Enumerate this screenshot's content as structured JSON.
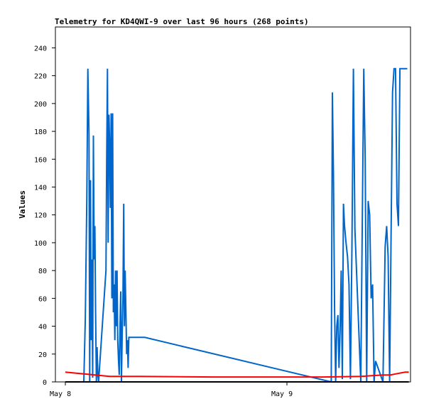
{
  "chart_data": {
    "type": "line",
    "title": "Telemetry for KD4QWI-9 over last 96 hours (268 points)",
    "xlabel": "",
    "ylabel": "Values",
    "x_tick_labels": [
      "May 8",
      "May 9"
    ],
    "x_range_hours": [
      0,
      96
    ],
    "x_ticks_hours": [
      0,
      60
    ],
    "ylim": [
      0,
      255
    ],
    "y_ticks": [
      0,
      20,
      40,
      60,
      80,
      100,
      120,
      140,
      160,
      180,
      200,
      220,
      240
    ],
    "grid": false,
    "series": [
      {
        "color": "#0066cc",
        "x": [
          5.0,
          5.4,
          5.8,
          6.1,
          6.4,
          6.6,
          6.8,
          7.0,
          7.2,
          7.4,
          7.6,
          7.8,
          8.0,
          8.2,
          8.4,
          8.6,
          8.8,
          9.0,
          11.0,
          11.2,
          11.4,
          11.6,
          11.8,
          12.0,
          12.2,
          12.4,
          12.6,
          12.8,
          13.0,
          13.2,
          13.4,
          13.6,
          13.8,
          14.0,
          14.2,
          14.4,
          14.6,
          14.8,
          15.0,
          15.2,
          15.4,
          15.6,
          15.8,
          16.0,
          16.2,
          16.4,
          16.6,
          16.8,
          17.0,
          17.2,
          17.4,
          17.6,
          17.8,
          18.0,
          18.2,
          18.4,
          18.6,
          18.8,
          19.0,
          19.3,
          19.6,
          20.0,
          20.5,
          21.0,
          21.5,
          72.0,
          72.3,
          72.6,
          72.9,
          73.2,
          73.5,
          73.8,
          74.1,
          74.4,
          74.7,
          75.0,
          75.3,
          75.6,
          76.0,
          76.4,
          76.8,
          77.2,
          77.6,
          78.0,
          78.4,
          80.0,
          80.4,
          80.8,
          81.2,
          81.6,
          82.0,
          82.4,
          82.8,
          83.2,
          83.6,
          84.0,
          86.0,
          86.6,
          87.0,
          87.4,
          87.8,
          88.2,
          88.6,
          89.0,
          89.4,
          89.8,
          90.2,
          90.6,
          91.0,
          91.4,
          91.8,
          92.2,
          92.6
        ],
        "values": [
          0,
          45,
          130,
          225,
          178,
          0,
          145,
          30,
          88,
          3,
          177,
          88,
          112,
          50,
          0,
          25,
          5,
          0,
          80,
          160,
          225,
          100,
          192,
          170,
          125,
          193,
          60,
          193,
          50,
          70,
          30,
          80,
          40,
          80,
          30,
          15,
          5,
          40,
          65,
          0,
          35,
          60,
          128,
          40,
          80,
          50,
          20,
          30,
          10,
          32,
          32,
          32,
          32,
          32,
          32,
          32,
          32,
          32,
          32,
          32,
          32,
          32,
          32,
          32,
          32,
          0,
          208,
          150,
          52,
          0,
          40,
          48,
          10,
          38,
          80,
          2,
          128,
          112,
          100,
          90,
          70,
          2,
          95,
          225,
          110,
          0,
          115,
          225,
          160,
          0,
          130,
          120,
          60,
          70,
          0,
          15,
          0,
          97,
          112,
          90,
          0,
          103,
          208,
          225,
          225,
          128,
          112,
          225,
          225,
          225,
          225,
          225,
          225
        ]
      },
      {
        "color": "#ff0000",
        "x": [
          0,
          4,
          8,
          12,
          20,
          40,
          60,
          70,
          80,
          86,
          88,
          90,
          92,
          93
        ],
        "values": [
          7,
          6,
          5,
          4,
          4,
          3.5,
          3.5,
          3.5,
          4,
          5,
          5,
          6,
          7,
          7
        ]
      },
      {
        "color": "#000000",
        "x": [
          0,
          93
        ],
        "values": [
          0,
          0
        ]
      }
    ]
  }
}
